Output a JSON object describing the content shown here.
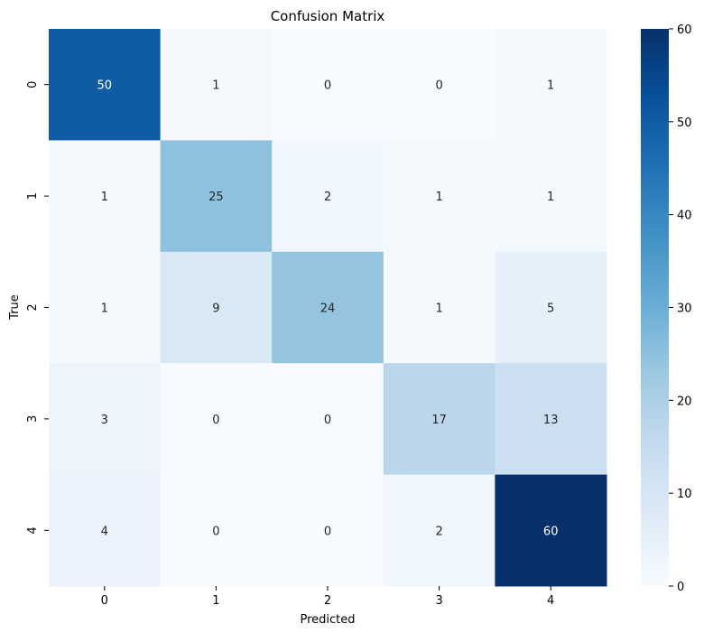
{
  "chart_data": {
    "type": "heatmap",
    "title": "Confusion Matrix",
    "xlabel": "Predicted",
    "ylabel": "True",
    "x_categories": [
      "0",
      "1",
      "2",
      "3",
      "4"
    ],
    "y_categories": [
      "0",
      "1",
      "2",
      "3",
      "4"
    ],
    "values": [
      [
        50,
        1,
        0,
        0,
        1
      ],
      [
        1,
        25,
        2,
        1,
        1
      ],
      [
        1,
        9,
        24,
        1,
        5
      ],
      [
        3,
        0,
        0,
        17,
        13
      ],
      [
        4,
        0,
        0,
        2,
        60
      ]
    ],
    "colormap": "Blues",
    "vmin": 0,
    "vmax": 60,
    "colorbar_ticks": [
      0,
      10,
      20,
      30,
      40,
      50,
      60
    ],
    "colors": {
      "blues_stops": [
        "#f7fbff",
        "#deebf7",
        "#c6dbef",
        "#9ecae1",
        "#6baed6",
        "#4292c6",
        "#2171b5",
        "#08519c",
        "#08306b"
      ]
    }
  }
}
